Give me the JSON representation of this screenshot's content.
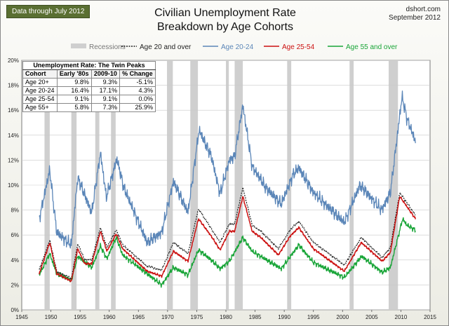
{
  "badge": "Data through July 2012",
  "title_line1": "Civilian Unemployment Rate",
  "title_line2": "Breakdown by Age Cohorts",
  "source_site": "dshort.com",
  "source_date": "September 2012",
  "colors": {
    "recession": "#cfcfcf",
    "age20over": "#222222",
    "age2024": "#5b86b8",
    "age2554": "#cc1111",
    "age55over": "#19a538",
    "grid": "#c9c9c9"
  },
  "table": {
    "caption": "Unemployment Rate: The Twin Peaks",
    "headers": [
      "Cohort",
      "Early '80s",
      "2009-10",
      "% Change"
    ],
    "rows": [
      [
        "Age 20+",
        "9.8%",
        "9.3%",
        "-5.1%"
      ],
      [
        "Age 20-24",
        "16.4%",
        "17.1%",
        "4.3%"
      ],
      [
        "Age 25-54",
        "9.1%",
        "9.1%",
        "0.0%"
      ],
      [
        "Age 55+",
        "5.8%",
        "7.3%",
        "25.9%"
      ]
    ]
  },
  "chart_data": {
    "type": "line",
    "title": "Civilian Unemployment Rate Breakdown by Age Cohorts",
    "xlim": [
      1945,
      2015
    ],
    "ylim": [
      0,
      20
    ],
    "x_ticks": [
      1945,
      1950,
      1955,
      1960,
      1965,
      1970,
      1975,
      1980,
      1985,
      1990,
      1995,
      2000,
      2005,
      2010,
      2015
    ],
    "y_ticks": [
      0,
      2,
      4,
      6,
      8,
      10,
      12,
      14,
      16,
      18,
      20
    ],
    "y_tick_labels": [
      "0%",
      "2%",
      "4%",
      "6%",
      "8%",
      "10%",
      "12%",
      "14%",
      "16%",
      "18%",
      "20%"
    ],
    "legend": [
      "Recessions",
      "Age 20 and over",
      "Age 20-24",
      "Age 25-54",
      "Age 55 and over"
    ],
    "recessions": [
      [
        1948.9,
        1949.8
      ],
      [
        1953.5,
        1954.4
      ],
      [
        1957.6,
        1958.3
      ],
      [
        1960.3,
        1961.1
      ],
      [
        1969.9,
        1970.9
      ],
      [
        1973.9,
        1975.2
      ],
      [
        1980.0,
        1980.5
      ],
      [
        1981.5,
        1982.9
      ],
      [
        1990.5,
        1991.2
      ],
      [
        2001.2,
        2001.9
      ],
      [
        2007.9,
        2009.5
      ]
    ],
    "series": [
      {
        "name": "Age 20 and over",
        "x": [
          1948,
          1949.8,
          1951,
          1953.5,
          1954.6,
          1955.8,
          1957,
          1958.5,
          1959.6,
          1961.2,
          1962.3,
          1966.5,
          1969,
          1971,
          1973.5,
          1975.3,
          1977.5,
          1979,
          1980.6,
          1981.5,
          1982.9,
          1984.5,
          1986,
          1989,
          1991,
          1992.5,
          1995,
          2000.3,
          2003.2,
          2006.8,
          2008.2,
          2009.8,
          2011,
          2012.5
        ],
        "values": [
          3.2,
          5.6,
          3.1,
          2.5,
          5.3,
          4.0,
          4.0,
          6.6,
          5.0,
          6.4,
          5.2,
          3.5,
          3.2,
          5.4,
          4.5,
          8.1,
          6.5,
          5.4,
          6.9,
          6.9,
          9.8,
          6.8,
          6.3,
          4.9,
          6.4,
          7.1,
          5.4,
          3.6,
          5.8,
          4.2,
          5.0,
          9.4,
          8.6,
          7.6
        ]
      },
      {
        "name": "Age 20-24",
        "x": [
          1948,
          1949.8,
          1951,
          1953.5,
          1954.6,
          1957,
          1958.5,
          1959.5,
          1961.3,
          1962.5,
          1966.5,
          1969,
          1971,
          1973.5,
          1975.4,
          1977.5,
          1979,
          1980.6,
          1981.5,
          1982.9,
          1984.5,
          1987,
          1989.5,
          1991.5,
          1992.5,
          1995,
          2000.3,
          2003,
          2006.7,
          2008.2,
          2010.2,
          2011,
          2012.5
        ],
        "values": [
          7.3,
          11.2,
          6.2,
          5.2,
          10.6,
          7.8,
          12.6,
          9.0,
          12.1,
          9.8,
          5.4,
          6.2,
          10.3,
          7.8,
          14.4,
          12.3,
          9.3,
          12.0,
          12.3,
          16.4,
          11.5,
          9.7,
          8.5,
          10.8,
          11.4,
          9.4,
          7.0,
          10.0,
          8.0,
          9.4,
          17.1,
          15.4,
          13.5
        ]
      },
      {
        "name": "Age 25-54",
        "x": [
          1948,
          1949.8,
          1951,
          1953.5,
          1954.6,
          1955.8,
          1957,
          1958.5,
          1959.6,
          1961.2,
          1962.3,
          1966.5,
          1969,
          1971,
          1973.5,
          1975.3,
          1977.5,
          1979,
          1980.6,
          1981.5,
          1982.9,
          1984.5,
          1986,
          1989,
          1991,
          1992.5,
          1995,
          2000.3,
          2003.2,
          2006.8,
          2008.2,
          2009.8,
          2011,
          2012.5
        ],
        "values": [
          2.9,
          5.4,
          2.9,
          2.3,
          4.9,
          3.7,
          3.7,
          6.3,
          4.7,
          6.1,
          4.9,
          3.1,
          2.7,
          4.7,
          3.9,
          7.3,
          5.9,
          4.8,
          6.3,
          6.3,
          9.1,
          6.3,
          5.8,
          4.4,
          5.9,
          6.6,
          4.9,
          3.1,
          5.4,
          3.9,
          4.6,
          9.1,
          8.3,
          7.3
        ]
      },
      {
        "name": "Age 55 and over",
        "x": [
          1948,
          1949.8,
          1951,
          1953.5,
          1954.6,
          1957,
          1958.5,
          1959.6,
          1961.2,
          1962.3,
          1966.5,
          1969,
          1971,
          1973.5,
          1975.3,
          1977.5,
          1979,
          1980.6,
          1982.9,
          1984.5,
          1987,
          1989.5,
          1992.5,
          1995,
          2000.3,
          2003.3,
          2006.8,
          2008.2,
          2010.3,
          2011,
          2012.5
        ],
        "values": [
          2.8,
          4.5,
          2.9,
          2.4,
          4.3,
          3.4,
          5.1,
          4.1,
          5.8,
          4.4,
          2.9,
          2.0,
          3.4,
          2.8,
          4.8,
          4.0,
          3.3,
          3.9,
          5.8,
          4.7,
          4.0,
          3.3,
          5.2,
          3.8,
          2.6,
          4.3,
          3.0,
          3.4,
          7.3,
          6.8,
          6.4
        ]
      }
    ]
  }
}
